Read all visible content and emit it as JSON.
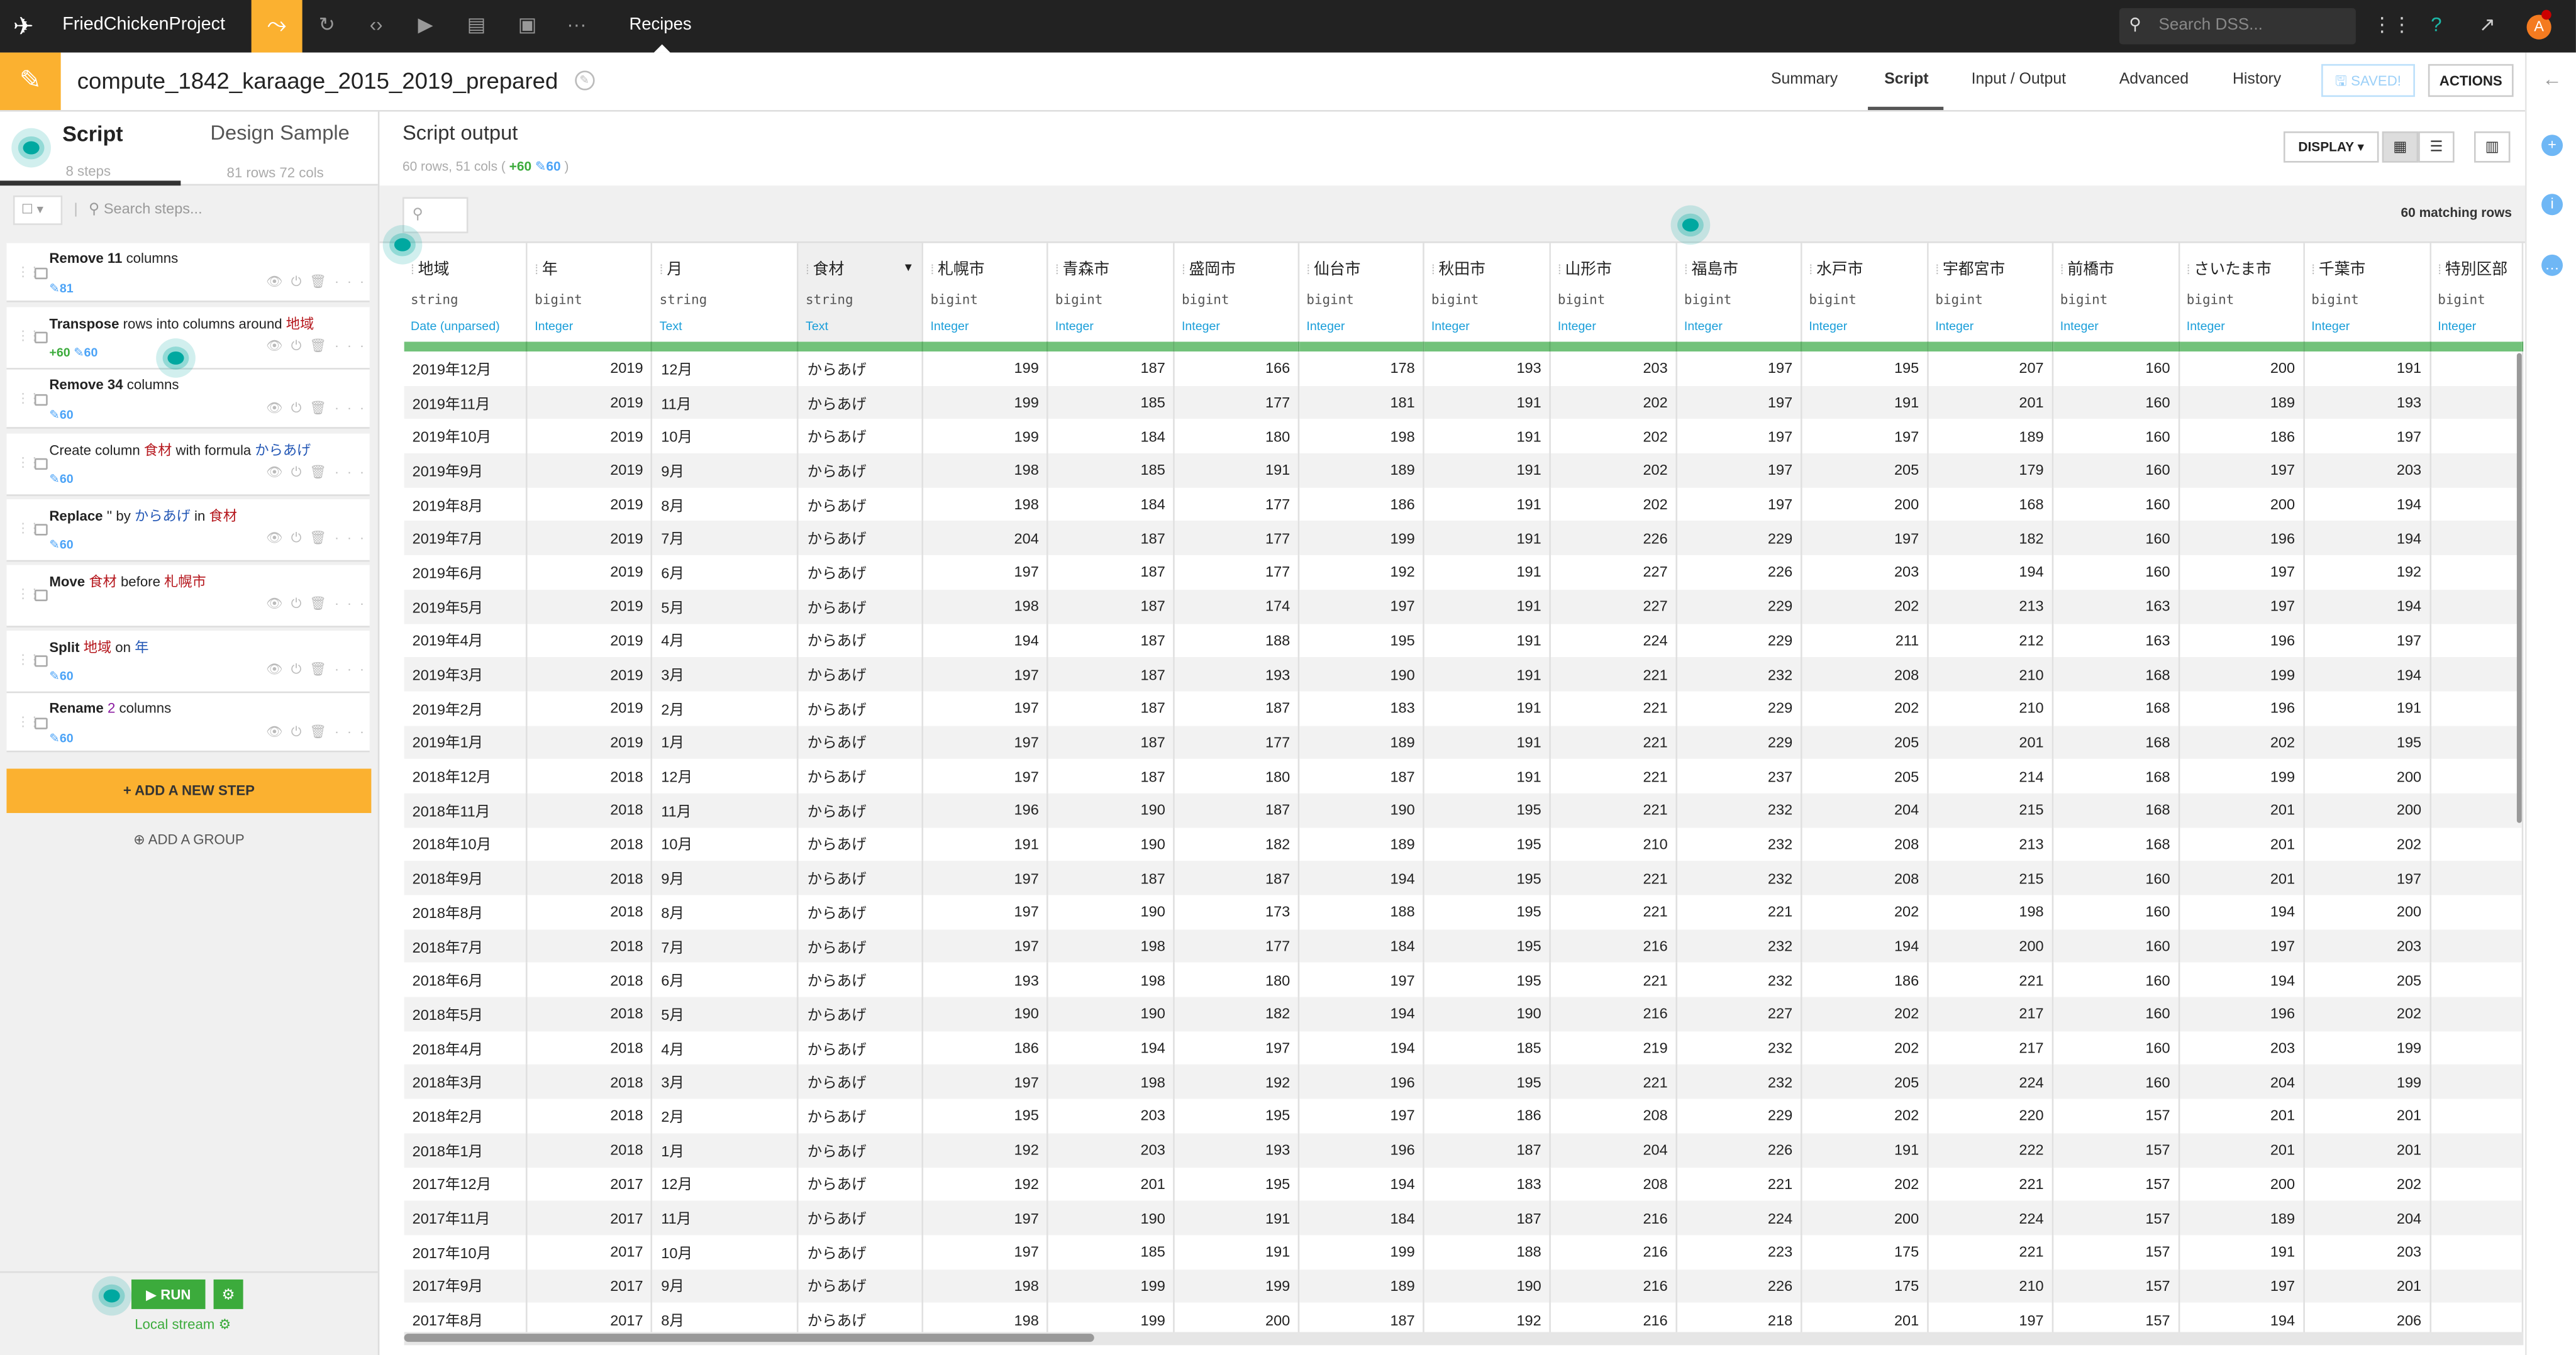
{
  "topbar": {
    "project_name": "FriedChickenProject",
    "section": "Recipes",
    "search_placeholder": "Search DSS...",
    "avatar_letter": "A"
  },
  "recipe": {
    "title": "compute_1842_karaage_2015_2019_prepared",
    "tabs": [
      "Summary",
      "Script",
      "Input / Output",
      "Advanced",
      "History"
    ],
    "active_tab": "Script",
    "saved_label": "SAVED!",
    "actions_label": "ACTIONS"
  },
  "left": {
    "script_tab": "Script",
    "script_sub": "8 steps",
    "sample_tab": "Design Sample",
    "sample_sub": "81 rows 72 cols",
    "search_placeholder": "Search steps...",
    "steps": [
      {
        "parts": [
          {
            "t": "Remove 11",
            "k": "k"
          },
          {
            "t": " columns",
            "k": ""
          }
        ],
        "added": "",
        "modified": "81"
      },
      {
        "parts": [
          {
            "t": "Transpose",
            "k": "k"
          },
          {
            "t": " rows into columns around ",
            "k": ""
          },
          {
            "t": "地域",
            "k": "c"
          }
        ],
        "added": "60",
        "modified": "60"
      },
      {
        "parts": [
          {
            "t": "Remove 34",
            "k": "k"
          },
          {
            "t": " columns",
            "k": ""
          }
        ],
        "added": "",
        "modified": "60"
      },
      {
        "parts": [
          {
            "t": "Create column ",
            "k": ""
          },
          {
            "t": "食材",
            "k": "c"
          },
          {
            "t": " with formula ",
            "k": ""
          },
          {
            "t": "からあげ",
            "k": "v"
          }
        ],
        "added": "",
        "modified": "60"
      },
      {
        "parts": [
          {
            "t": "Replace",
            "k": "k"
          },
          {
            "t": " '' by ",
            "k": ""
          },
          {
            "t": "からあげ",
            "k": "v"
          },
          {
            "t": " in ",
            "k": ""
          },
          {
            "t": "食材",
            "k": "c"
          }
        ],
        "added": "",
        "modified": "60"
      },
      {
        "parts": [
          {
            "t": "Move",
            "k": "k"
          },
          {
            "t": " ",
            "k": ""
          },
          {
            "t": "食材",
            "k": "c"
          },
          {
            "t": " before ",
            "k": ""
          },
          {
            "t": "札幌市",
            "k": "c"
          }
        ],
        "added": "",
        "modified": ""
      },
      {
        "parts": [
          {
            "t": "Split",
            "k": "k"
          },
          {
            "t": " ",
            "k": ""
          },
          {
            "t": "地域",
            "k": "c"
          },
          {
            "t": " on ",
            "k": ""
          },
          {
            "t": "年",
            "k": "v"
          }
        ],
        "added": "",
        "modified": "60"
      },
      {
        "parts": [
          {
            "t": "Rename",
            "k": "k"
          },
          {
            "t": " ",
            "k": ""
          },
          {
            "t": "2",
            "k": "n"
          },
          {
            "t": " columns",
            "k": ""
          }
        ],
        "added": "",
        "modified": "60"
      }
    ],
    "add_step_label": "+ ADD A NEW STEP",
    "add_group_label": "ADD A GROUP",
    "run_label": "RUN",
    "engine_label": "Local stream"
  },
  "main": {
    "title": "Script output",
    "rows_label": "60 rows,",
    "cols_label": "51 cols",
    "added": "60",
    "modified": "60",
    "display_label": "DISPLAY",
    "matching_label": "60 matching rows",
    "columns": [
      {
        "name": "地域",
        "storage": "string",
        "meaning": "Date (unparsed)",
        "align": "l"
      },
      {
        "name": "年",
        "storage": "bigint",
        "meaning": "Integer",
        "align": "r"
      },
      {
        "name": "月",
        "storage": "string",
        "meaning": "Text",
        "align": "l"
      },
      {
        "name": "食材",
        "storage": "string",
        "meaning": "Text",
        "align": "l",
        "selected": true
      },
      {
        "name": "札幌市",
        "storage": "bigint",
        "meaning": "Integer",
        "align": "r"
      },
      {
        "name": "青森市",
        "storage": "bigint",
        "meaning": "Integer",
        "align": "r"
      },
      {
        "name": "盛岡市",
        "storage": "bigint",
        "meaning": "Integer",
        "align": "r"
      },
      {
        "name": "仙台市",
        "storage": "bigint",
        "meaning": "Integer",
        "align": "r"
      },
      {
        "name": "秋田市",
        "storage": "bigint",
        "meaning": "Integer",
        "align": "r"
      },
      {
        "name": "山形市",
        "storage": "bigint",
        "meaning": "Integer",
        "align": "r"
      },
      {
        "name": "福島市",
        "storage": "bigint",
        "meaning": "Integer",
        "align": "r"
      },
      {
        "name": "水戸市",
        "storage": "bigint",
        "meaning": "Integer",
        "align": "r"
      },
      {
        "name": "宇都宮市",
        "storage": "bigint",
        "meaning": "Integer",
        "align": "r"
      },
      {
        "name": "前橋市",
        "storage": "bigint",
        "meaning": "Integer",
        "align": "r"
      },
      {
        "name": "さいたま市",
        "storage": "bigint",
        "meaning": "Integer",
        "align": "r"
      },
      {
        "name": "千葉市",
        "storage": "bigint",
        "meaning": "Integer",
        "align": "r"
      },
      {
        "name": "特別区部",
        "storage": "bigint",
        "meaning": "Integer",
        "align": "r"
      }
    ],
    "rows": [
      [
        "2019年12月",
        "2019",
        "12月",
        "からあげ",
        "199",
        "187",
        "166",
        "178",
        "193",
        "203",
        "197",
        "195",
        "207",
        "160",
        "200",
        "191",
        ""
      ],
      [
        "2019年11月",
        "2019",
        "11月",
        "からあげ",
        "199",
        "185",
        "177",
        "181",
        "191",
        "202",
        "197",
        "191",
        "201",
        "160",
        "189",
        "193",
        ""
      ],
      [
        "2019年10月",
        "2019",
        "10月",
        "からあげ",
        "199",
        "184",
        "180",
        "198",
        "191",
        "202",
        "197",
        "197",
        "189",
        "160",
        "186",
        "197",
        ""
      ],
      [
        "2019年9月",
        "2019",
        "9月",
        "からあげ",
        "198",
        "185",
        "191",
        "189",
        "191",
        "202",
        "197",
        "205",
        "179",
        "160",
        "197",
        "203",
        ""
      ],
      [
        "2019年8月",
        "2019",
        "8月",
        "からあげ",
        "198",
        "184",
        "177",
        "186",
        "191",
        "202",
        "197",
        "200",
        "168",
        "160",
        "200",
        "194",
        ""
      ],
      [
        "2019年7月",
        "2019",
        "7月",
        "からあげ",
        "204",
        "187",
        "177",
        "199",
        "191",
        "226",
        "229",
        "197",
        "182",
        "160",
        "196",
        "194",
        ""
      ],
      [
        "2019年6月",
        "2019",
        "6月",
        "からあげ",
        "197",
        "187",
        "177",
        "192",
        "191",
        "227",
        "226",
        "203",
        "194",
        "160",
        "197",
        "192",
        ""
      ],
      [
        "2019年5月",
        "2019",
        "5月",
        "からあげ",
        "198",
        "187",
        "174",
        "197",
        "191",
        "227",
        "229",
        "202",
        "213",
        "163",
        "197",
        "194",
        ""
      ],
      [
        "2019年4月",
        "2019",
        "4月",
        "からあげ",
        "194",
        "187",
        "188",
        "195",
        "191",
        "224",
        "229",
        "211",
        "212",
        "163",
        "196",
        "197",
        ""
      ],
      [
        "2019年3月",
        "2019",
        "3月",
        "からあげ",
        "197",
        "187",
        "193",
        "190",
        "191",
        "221",
        "232",
        "208",
        "210",
        "168",
        "199",
        "194",
        ""
      ],
      [
        "2019年2月",
        "2019",
        "2月",
        "からあげ",
        "197",
        "187",
        "187",
        "183",
        "191",
        "221",
        "229",
        "202",
        "210",
        "168",
        "196",
        "191",
        ""
      ],
      [
        "2019年1月",
        "2019",
        "1月",
        "からあげ",
        "197",
        "187",
        "177",
        "189",
        "191",
        "221",
        "229",
        "205",
        "201",
        "168",
        "202",
        "195",
        ""
      ],
      [
        "2018年12月",
        "2018",
        "12月",
        "からあげ",
        "197",
        "187",
        "180",
        "187",
        "191",
        "221",
        "237",
        "205",
        "214",
        "168",
        "199",
        "200",
        ""
      ],
      [
        "2018年11月",
        "2018",
        "11月",
        "からあげ",
        "196",
        "190",
        "187",
        "190",
        "195",
        "221",
        "232",
        "204",
        "215",
        "168",
        "201",
        "200",
        ""
      ],
      [
        "2018年10月",
        "2018",
        "10月",
        "からあげ",
        "191",
        "190",
        "182",
        "189",
        "195",
        "210",
        "232",
        "208",
        "213",
        "168",
        "201",
        "202",
        ""
      ],
      [
        "2018年9月",
        "2018",
        "9月",
        "からあげ",
        "197",
        "187",
        "187",
        "194",
        "195",
        "221",
        "232",
        "208",
        "215",
        "160",
        "201",
        "197",
        ""
      ],
      [
        "2018年8月",
        "2018",
        "8月",
        "からあげ",
        "197",
        "190",
        "173",
        "188",
        "195",
        "221",
        "221",
        "202",
        "198",
        "160",
        "194",
        "200",
        ""
      ],
      [
        "2018年7月",
        "2018",
        "7月",
        "からあげ",
        "197",
        "198",
        "177",
        "184",
        "195",
        "216",
        "232",
        "194",
        "200",
        "160",
        "197",
        "203",
        ""
      ],
      [
        "2018年6月",
        "2018",
        "6月",
        "からあげ",
        "193",
        "198",
        "180",
        "197",
        "195",
        "221",
        "232",
        "186",
        "221",
        "160",
        "194",
        "205",
        ""
      ],
      [
        "2018年5月",
        "2018",
        "5月",
        "からあげ",
        "190",
        "190",
        "182",
        "194",
        "190",
        "216",
        "227",
        "202",
        "217",
        "160",
        "196",
        "202",
        ""
      ],
      [
        "2018年4月",
        "2018",
        "4月",
        "からあげ",
        "186",
        "194",
        "197",
        "194",
        "185",
        "219",
        "232",
        "202",
        "217",
        "160",
        "203",
        "199",
        ""
      ],
      [
        "2018年3月",
        "2018",
        "3月",
        "からあげ",
        "197",
        "198",
        "192",
        "196",
        "195",
        "221",
        "232",
        "205",
        "224",
        "160",
        "204",
        "199",
        ""
      ],
      [
        "2018年2月",
        "2018",
        "2月",
        "からあげ",
        "195",
        "203",
        "195",
        "197",
        "186",
        "208",
        "229",
        "202",
        "220",
        "157",
        "201",
        "201",
        ""
      ],
      [
        "2018年1月",
        "2018",
        "1月",
        "からあげ",
        "192",
        "203",
        "193",
        "196",
        "187",
        "204",
        "226",
        "191",
        "222",
        "157",
        "201",
        "201",
        ""
      ],
      [
        "2017年12月",
        "2017",
        "12月",
        "からあげ",
        "192",
        "201",
        "195",
        "194",
        "183",
        "208",
        "221",
        "202",
        "221",
        "157",
        "200",
        "202",
        ""
      ],
      [
        "2017年11月",
        "2017",
        "11月",
        "からあげ",
        "197",
        "190",
        "191",
        "184",
        "187",
        "216",
        "224",
        "200",
        "224",
        "157",
        "189",
        "204",
        ""
      ],
      [
        "2017年10月",
        "2017",
        "10月",
        "からあげ",
        "197",
        "185",
        "191",
        "199",
        "188",
        "216",
        "223",
        "175",
        "221",
        "157",
        "191",
        "203",
        ""
      ],
      [
        "2017年9月",
        "2017",
        "9月",
        "からあげ",
        "198",
        "199",
        "199",
        "189",
        "190",
        "216",
        "226",
        "175",
        "210",
        "157",
        "197",
        "201",
        ""
      ],
      [
        "2017年8月",
        "2017",
        "8月",
        "からあげ",
        "198",
        "199",
        "200",
        "187",
        "192",
        "216",
        "218",
        "201",
        "197",
        "157",
        "194",
        "206",
        ""
      ]
    ]
  },
  "colors": {
    "accent": "#fbb130",
    "run": "#3cab3c",
    "schema_ok": "#72c27a",
    "meaning": "#1a9ed9",
    "column_ref": "#b5161c",
    "value_ref": "#2357b5"
  }
}
